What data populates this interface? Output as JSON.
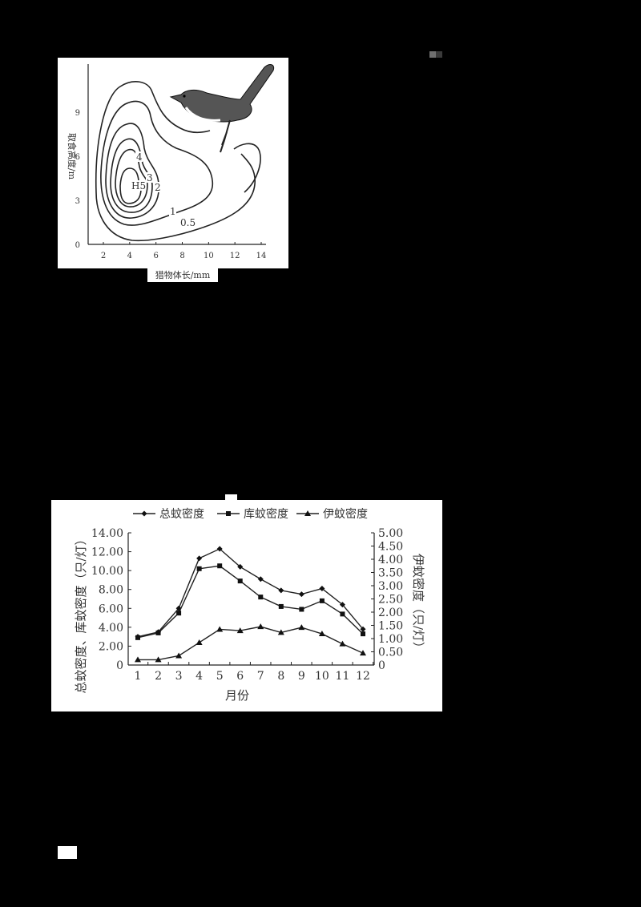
{
  "colors": {
    "background": "#000000",
    "panel": "#ffffff",
    "ink": "#2a2a2a",
    "mark_light": "#6f6f6f",
    "mark_dark": "#3a3a3a"
  },
  "chart_data": [
    {
      "type": "contour",
      "title": "",
      "xlabel": "猎物体长/mm",
      "ylabel": "取食高度/m",
      "xlim": [
        1,
        14.5
      ],
      "ylim": [
        0,
        11.5
      ],
      "x_ticks": [
        "2",
        "4",
        "6",
        "8",
        "10",
        "12",
        "14"
      ],
      "y_ticks": [
        "0",
        "3",
        "6",
        "9"
      ],
      "contour_levels": [
        "0.5",
        "1",
        "2",
        "3",
        "4",
        "H5"
      ],
      "peak": {
        "label": "H5",
        "x": 4.3,
        "y": 4.2
      },
      "illustration": "bird-perched-on-twig",
      "grid": false
    },
    {
      "type": "line",
      "title": "",
      "xlabel": "月份",
      "ylabel": "总蚊密度、库蚊密度（只/灯）",
      "ylabel_right": "伊蚊密度（只/灯）",
      "categories": [
        "1",
        "2",
        "3",
        "4",
        "5",
        "6",
        "7",
        "8",
        "9",
        "10",
        "11",
        "12"
      ],
      "ylim": [
        0,
        14
      ],
      "ylim_right": [
        0,
        5
      ],
      "y_ticks": [
        "0",
        "2.00",
        "4.00",
        "6.00",
        "8.00",
        "10.00",
        "12.00",
        "14.00"
      ],
      "y_ticks_right": [
        "0",
        "0.50",
        "1.00",
        "1.50",
        "2.00",
        "2.50",
        "3.00",
        "3.50",
        "4.00",
        "4.50",
        "5.00"
      ],
      "legend_position": "top",
      "grid": false,
      "series": [
        {
          "name": "总蚊密度",
          "marker": "diamond",
          "axis": "left",
          "values": [
            3.0,
            3.5,
            6.0,
            11.3,
            12.3,
            10.4,
            9.1,
            7.9,
            7.5,
            8.1,
            6.4,
            3.8
          ]
        },
        {
          "name": "库蚊密度",
          "marker": "square",
          "axis": "left",
          "values": [
            2.9,
            3.4,
            5.5,
            10.2,
            10.5,
            8.9,
            7.2,
            6.2,
            5.9,
            6.8,
            5.4,
            3.3
          ]
        },
        {
          "name": "伊蚊密度",
          "marker": "triangle",
          "axis": "right",
          "values": [
            0.2,
            0.2,
            0.35,
            0.85,
            1.35,
            1.3,
            1.45,
            1.23,
            1.42,
            1.18,
            0.8,
            0.45
          ]
        }
      ]
    }
  ]
}
